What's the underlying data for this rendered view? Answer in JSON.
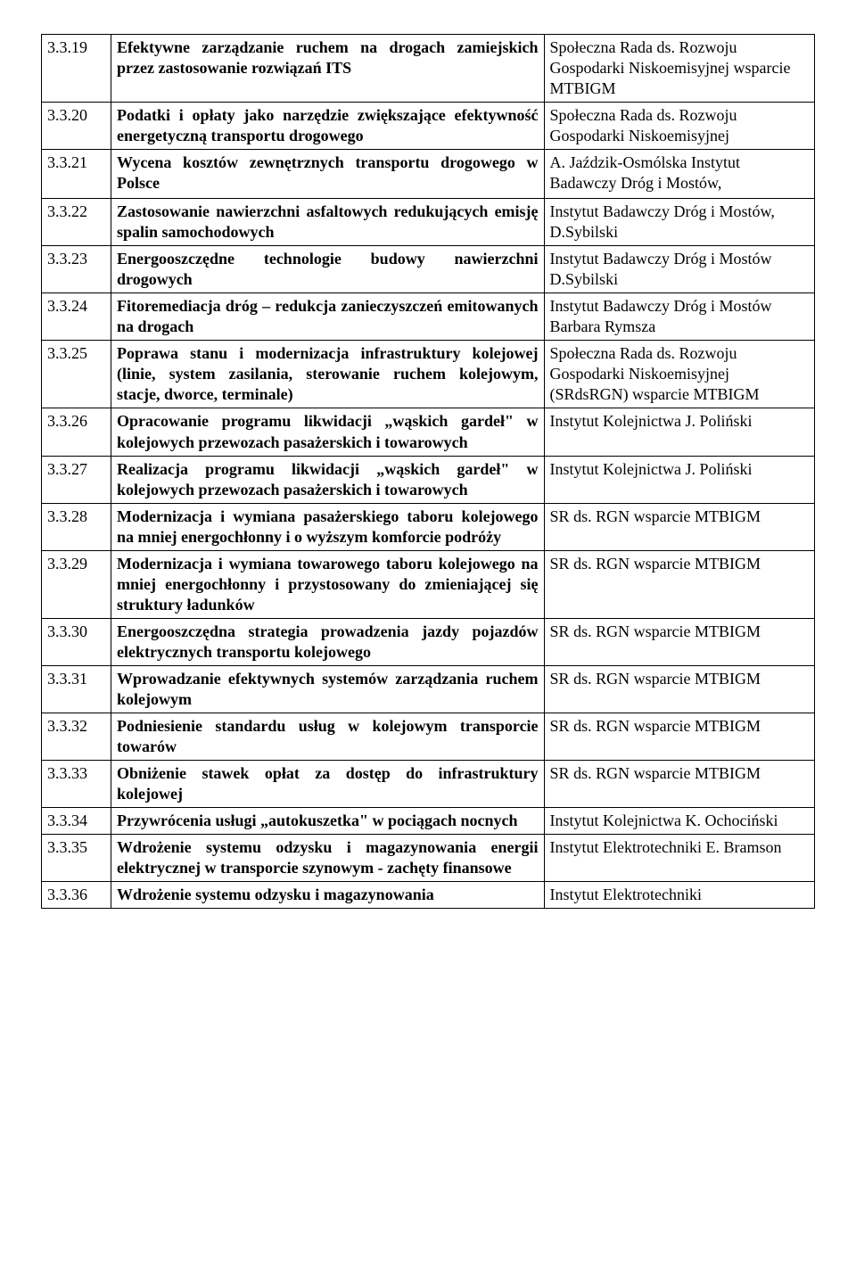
{
  "rows": [
    {
      "num": "3.3.19",
      "title": "Efektywne zarządzanie ruchem na drogach zamiejskich przez zastosowanie rozwiązań ITS",
      "org": "Społeczna Rada ds. Rozwoju Gospodarki Niskoemisyjnej wsparcie MTBIGM"
    },
    {
      "num": "3.3.20",
      "title": "Podatki i opłaty jako narzędzie zwiększające efektywność energetyczną transportu drogowego",
      "org": "Społeczna Rada ds. Rozwoju Gospodarki Niskoemisyjnej"
    },
    {
      "num": "3.3.21",
      "title": "Wycena kosztów zewnętrznych transportu drogowego w Polsce",
      "org": "A. Jaździk-Osmólska Instytut Badawczy Dróg i Mostów,",
      "extraPad": true
    },
    {
      "num": "3.3.22",
      "title": "Zastosowanie nawierzchni asfaltowych redukujących emisję spalin samochodowych",
      "org": "Instytut Badawczy Dróg i Mostów,  D.Sybilski"
    },
    {
      "num": "3.3.23",
      "title": "Energooszczędne technologie budowy nawierzchni drogowych",
      "org": "Instytut Badawczy Dróg i Mostów D.Sybilski"
    },
    {
      "num": "3.3.24",
      "title": "Fitoremediacja dróg – redukcja zanieczyszczeń emitowanych na drogach",
      "org": "Instytut Badawczy Dróg i Mostów Barbara Rymsza"
    },
    {
      "num": "3.3.25",
      "title": "Poprawa stanu i modernizacja infrastruktury kolejowej (linie, system zasilania, sterowanie ruchem kolejowym, stacje, dworce, terminale)",
      "org": "Społeczna Rada ds. Rozwoju Gospodarki Niskoemisyjnej (SRdsRGN) wsparcie MTBIGM"
    },
    {
      "num": "3.3.26",
      "title": "Opracowanie programu likwidacji „wąskich gardeł\" w kolejowych przewozach pasażerskich i towarowych",
      "org": "Instytut Kolejnictwa J. Poliński"
    },
    {
      "num": "3.3.27",
      "title": "Realizacja programu likwidacji „wąskich gardeł\" w kolejowych przewozach pasażerskich i towarowych",
      "org": "Instytut Kolejnictwa J. Poliński"
    },
    {
      "num": "3.3.28",
      "title": "Modernizacja i wymiana pasażerskiego taboru kolejowego na mniej energochłonny i o wyższym komforcie podróży",
      "org": "SR ds. RGN wsparcie MTBIGM"
    },
    {
      "num": "3.3.29",
      "title": "Modernizacja i wymiana towarowego taboru kolejowego na mniej energochłonny i przystosowany do zmieniającej się struktury ładunków",
      "org": "SR ds. RGN wsparcie MTBIGM"
    },
    {
      "num": "3.3.30",
      "title": "Energooszczędna strategia prowadzenia jazdy pojazdów elektrycznych transportu kolejowego",
      "org": "SR ds. RGN wsparcie MTBIGM"
    },
    {
      "num": "3.3.31",
      "title": "Wprowadzanie efektywnych systemów zarządzania ruchem kolejowym",
      "org": "SR ds. RGN wsparcie MTBIGM"
    },
    {
      "num": "3.3.32",
      "title": "Podniesienie standardu usług w kolejowym transporcie towarów",
      "org": "SR ds. RGN wsparcie MTBIGM"
    },
    {
      "num": "3.3.33",
      "title": "Obniżenie stawek opłat za dostęp do infrastruktury kolejowej",
      "org": "SR ds. RGN wsparcie MTBIGM"
    },
    {
      "num": "3.3.34",
      "title": "Przywrócenia usługi „autokuszetka\" w pociągach nocnych",
      "org": "Instytut Kolejnictwa K. Ochociński"
    },
    {
      "num": "3.3.35",
      "title": "Wdrożenie systemu odzysku i magazynowania energii elektrycznej w transporcie szynowym - zachęty finansowe",
      "org": "Instytut Elektrotechniki E. Bramson"
    },
    {
      "num": "3.3.36",
      "title": "Wdrożenie systemu odzysku i magazynowania",
      "org": "Instytut Elektrotechniki"
    }
  ]
}
